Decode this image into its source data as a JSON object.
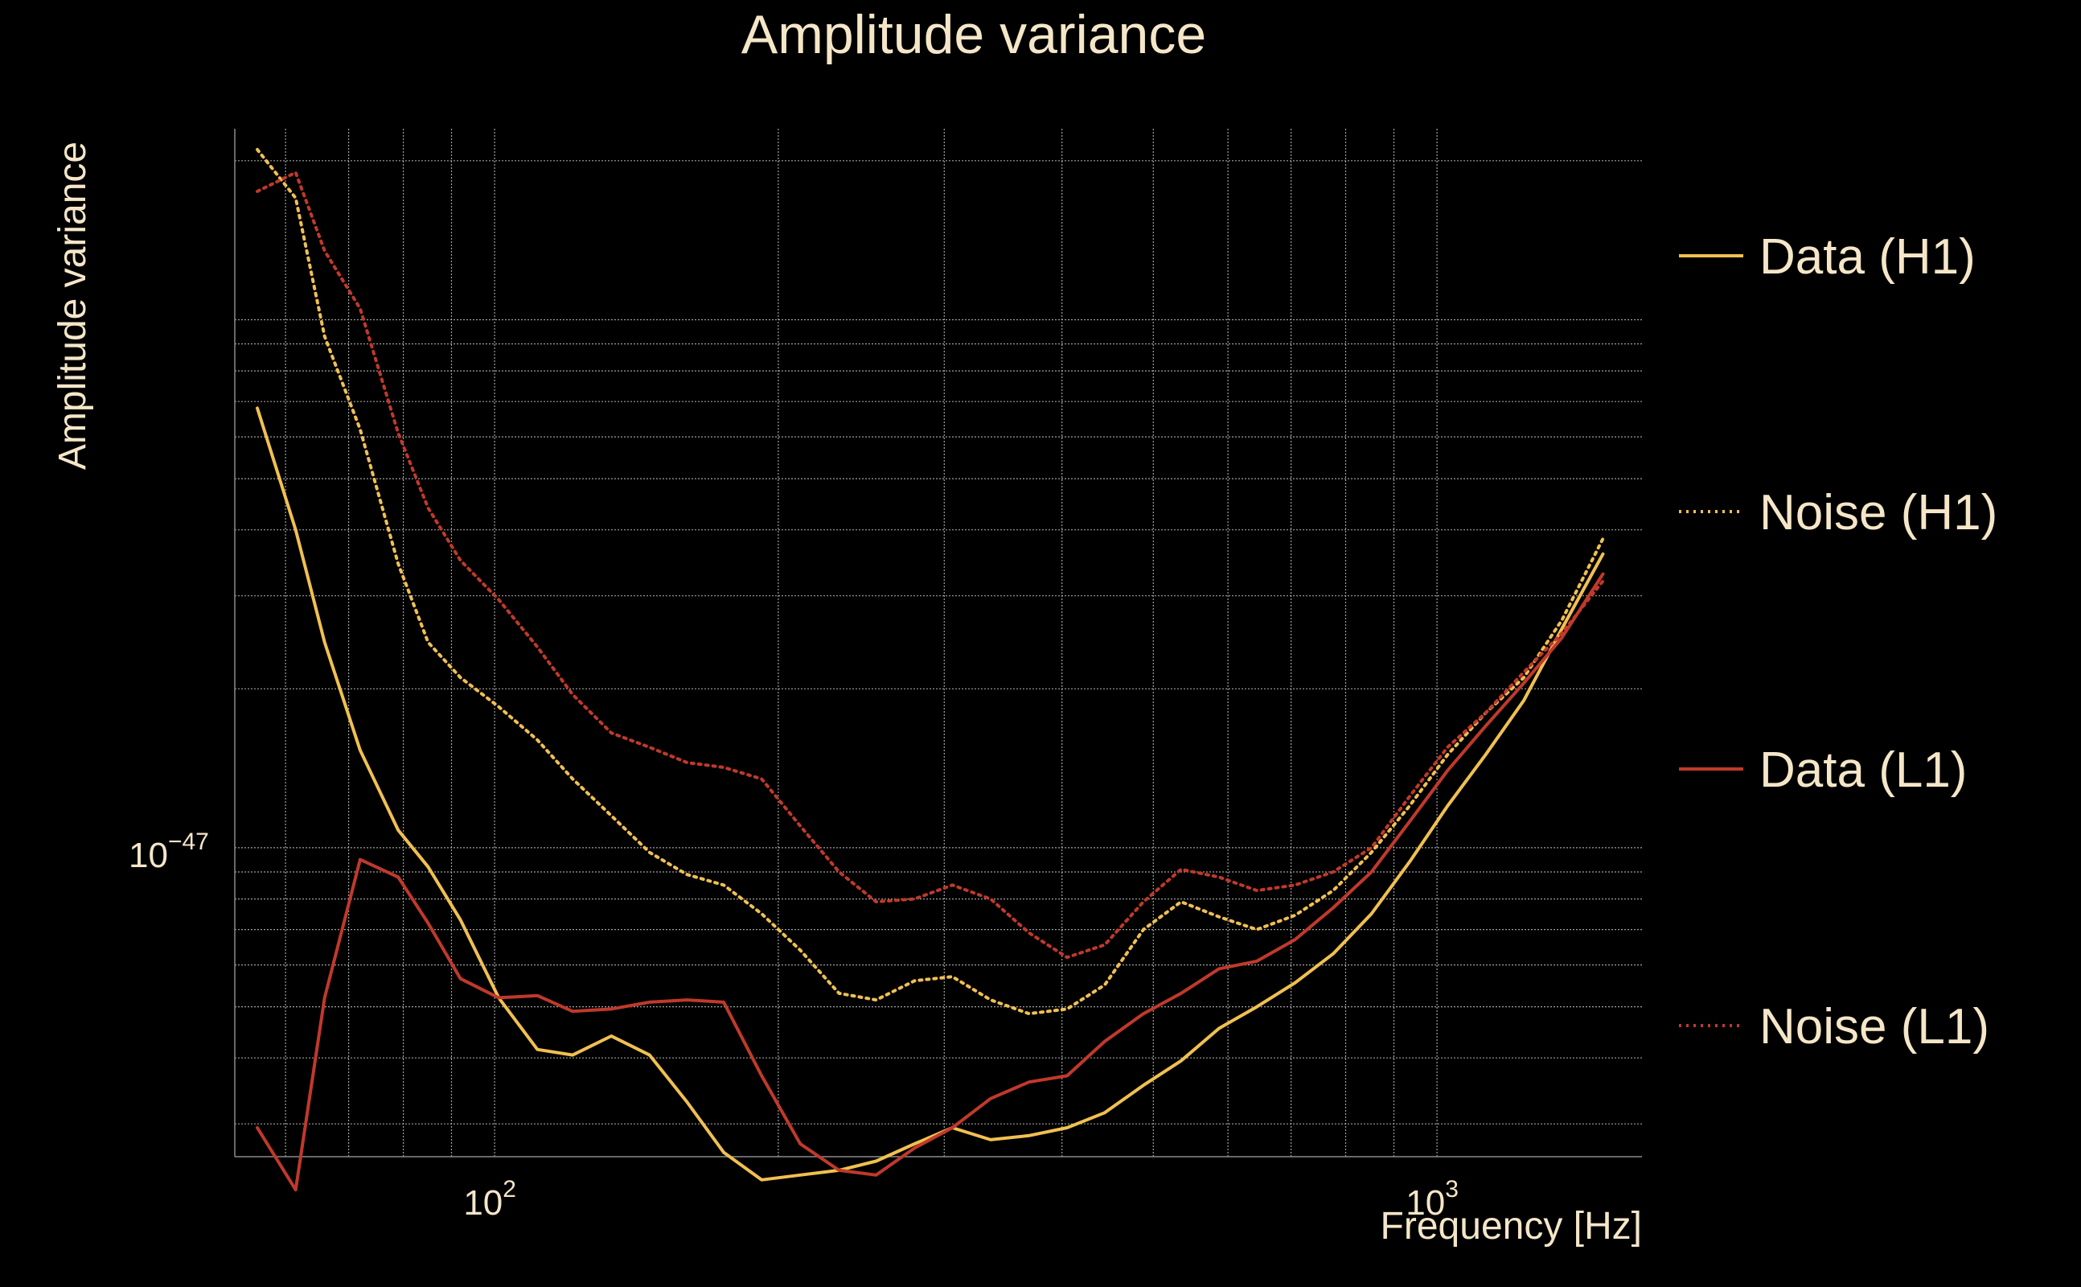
{
  "chart_data": {
    "type": "line",
    "title": "Amplitude variance",
    "xlabel": "Frequency [Hz]",
    "ylabel": "Amplitude variance",
    "xscale": "log",
    "yscale": "log",
    "xlim": [
      53,
      1650
    ],
    "ylim": [
      2.6e-48,
      2.3e-46
    ],
    "grid": true,
    "legend_position": "right",
    "x_ticks": [
      {
        "label_base": "10",
        "label_exp": "2",
        "value": 100
      },
      {
        "label_base": "10",
        "label_exp": "3",
        "value": 1000
      }
    ],
    "y_ticks": [
      {
        "label_base": "10",
        "label_exp": "−47",
        "value": 1e-47
      }
    ],
    "x": [
      56,
      61.5,
      66,
      72,
      79,
      85,
      92,
      101,
      111,
      121,
      133,
      146,
      160,
      175,
      192,
      211,
      232,
      254,
      279,
      306,
      336,
      369,
      405,
      444,
      488,
      535,
      587,
      644,
      707,
      776,
      852,
      935,
      1026,
      1126,
      1236,
      1357,
      1500
    ],
    "series": [
      {
        "name": "Data (H1)",
        "color": "#f0c050",
        "style": "solid",
        "values": [
          6.8e-47,
          4e-47,
          2.45e-47,
          1.53e-47,
          1.08e-47,
          9.2e-48,
          7.3e-48,
          5.2e-48,
          4.15e-48,
          4.05e-48,
          4.4e-48,
          4.05e-48,
          3.3e-48,
          2.65e-48,
          2.35e-48,
          2.4e-48,
          2.45e-48,
          2.55e-48,
          2.75e-48,
          2.95e-48,
          2.8e-48,
          2.85e-48,
          2.95e-48,
          3.15e-48,
          3.55e-48,
          3.95e-48,
          4.55e-48,
          5e-48,
          5.55e-48,
          6.3e-48,
          7.5e-48,
          9.4e-48,
          1.2e-47,
          1.5e-47,
          1.9e-47,
          2.6e-47,
          3.6e-47
        ]
      },
      {
        "name": "Noise (H1)",
        "color": "#f0c050",
        "style": "dotted",
        "values": [
          2.1e-46,
          1.7e-46,
          9.3e-47,
          6.2e-47,
          3.45e-47,
          2.45e-47,
          2.1e-47,
          1.85e-47,
          1.6e-47,
          1.35e-47,
          1.15e-47,
          9.8e-48,
          8.9e-48,
          8.5e-48,
          7.5e-48,
          6.4e-48,
          5.3e-48,
          5.15e-48,
          5.6e-48,
          5.7e-48,
          5.15e-48,
          4.85e-48,
          4.95e-48,
          5.5e-48,
          7e-48,
          7.9e-48,
          7.4e-48,
          7e-48,
          7.45e-48,
          8.3e-48,
          9.8e-48,
          1.2e-47,
          1.5e-47,
          1.8e-47,
          2.1e-47,
          2.7e-47,
          3.85e-47
        ]
      },
      {
        "name": "Data (L1)",
        "color": "#c0392b",
        "style": "solid",
        "values": [
          2.95e-48,
          2.25e-48,
          5.2e-48,
          9.5e-48,
          8.8e-48,
          7.2e-48,
          5.65e-48,
          5.2e-48,
          5.25e-48,
          4.9e-48,
          4.95e-48,
          5.1e-48,
          5.15e-48,
          5.1e-48,
          3.7e-48,
          2.75e-48,
          2.45e-48,
          2.4e-48,
          2.7e-48,
          2.95e-48,
          3.35e-48,
          3.6e-48,
          3.7e-48,
          4.3e-48,
          4.85e-48,
          5.3e-48,
          5.9e-48,
          6.1e-48,
          6.7e-48,
          7.7e-48,
          9e-48,
          1.12e-47,
          1.4e-47,
          1.7e-47,
          2.05e-47,
          2.5e-47,
          3.3e-47
        ]
      },
      {
        "name": "Noise (L1)",
        "color": "#c0392b",
        "style": "dotted",
        "values": [
          1.75e-46,
          1.9e-46,
          1.35e-46,
          1.05e-46,
          6.1e-47,
          4.4e-47,
          3.5e-47,
          2.95e-47,
          2.4e-47,
          1.95e-47,
          1.65e-47,
          1.55e-47,
          1.45e-47,
          1.42e-47,
          1.35e-47,
          1.1e-47,
          9e-48,
          7.9e-48,
          8e-48,
          8.5e-48,
          8e-48,
          6.9e-48,
          6.2e-48,
          6.55e-48,
          7.9e-48,
          9.1e-48,
          8.8e-48,
          8.3e-48,
          8.5e-48,
          9e-48,
          1e-47,
          1.25e-47,
          1.55e-47,
          1.8e-47,
          2.15e-47,
          2.55e-47,
          3.2e-47
        ]
      }
    ]
  }
}
